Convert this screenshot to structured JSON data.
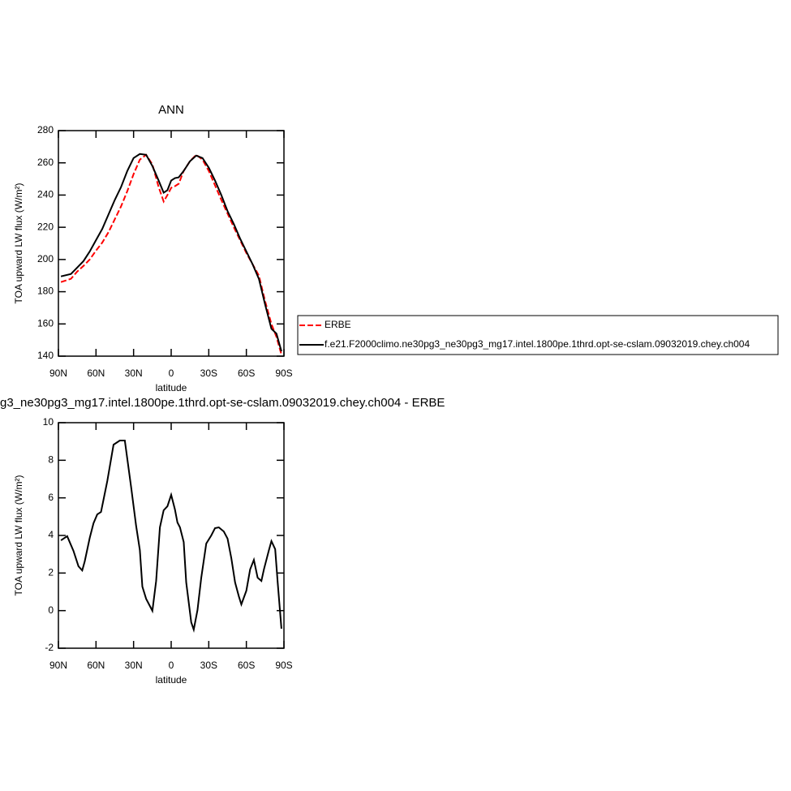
{
  "chart_data": [
    {
      "type": "line",
      "title": "ANN",
      "xlabel": "latitude",
      "ylabel": "TOA upward LW flux (W/m²)",
      "x": [
        88,
        80,
        75,
        70,
        65,
        60,
        55,
        50,
        45,
        40,
        35,
        30,
        25,
        20,
        15,
        10,
        6,
        3,
        0,
        -3,
        -6,
        -10,
        -15,
        -20,
        -25,
        -30,
        -35,
        -40,
        -45,
        -50,
        -55,
        -60,
        -65,
        -70,
        -75,
        -80,
        -84,
        -88
      ],
      "series": [
        {
          "name": "ERBE",
          "color": "#ff0000",
          "linestyle": "dashed",
          "values": [
            186,
            188,
            192.5,
            196,
            200,
            205.5,
            210.5,
            217,
            225,
            233,
            242.5,
            253,
            262,
            265,
            259,
            245,
            236,
            240,
            244.5,
            245.5,
            247,
            255,
            261,
            265,
            262,
            255,
            246,
            237,
            228.5,
            220,
            212,
            204,
            197,
            190,
            174,
            160,
            152,
            141
          ]
        },
        {
          "name": "f.e21.F2000climo.ne30pg3_ne30pg3_mg17.intel.1800pe.1thrd.opt-se-cslam.09032019.chey.ch004",
          "color": "#000000",
          "linestyle": "solid",
          "values": [
            189.5,
            191,
            195,
            199,
            205,
            212,
            219,
            228,
            237,
            245,
            255,
            263,
            265.5,
            265,
            258,
            249,
            241.5,
            243,
            249,
            250.5,
            251,
            255,
            261,
            264.5,
            263,
            257,
            249,
            240,
            230,
            222,
            213,
            205,
            197,
            188,
            172,
            157,
            154,
            143
          ]
        }
      ],
      "xlim": [
        90,
        -90
      ],
      "xticks": [
        {
          "value": 90,
          "label": "90N"
        },
        {
          "value": 60,
          "label": "60N"
        },
        {
          "value": 30,
          "label": "30N"
        },
        0,
        {
          "value": -30,
          "label": "30S"
        },
        {
          "value": -60,
          "label": "60S"
        },
        {
          "value": -90,
          "label": "90S"
        }
      ],
      "ylim": [
        140,
        280
      ],
      "yticks": [
        140,
        160,
        180,
        200,
        220,
        240,
        260,
        280
      ],
      "legend": "right"
    },
    {
      "type": "line",
      "title": "g3_ne30pg3_mg17.intel.1800pe.1thrd.opt-se-cslam.09032019.chey.ch004 - ERBE",
      "xlabel": "latitude",
      "ylabel": "TOA upward LW flux (W/m²)",
      "x": [
        88,
        83,
        78,
        74,
        71,
        69,
        65,
        62,
        59,
        56,
        51,
        46,
        41,
        37,
        32,
        28,
        25,
        23,
        20,
        15,
        12,
        9,
        6,
        3,
        0,
        -3,
        -5,
        -7,
        -10,
        -12,
        -16,
        -18,
        -21,
        -24,
        -28,
        -32,
        -35,
        -38,
        -42,
        -45,
        -48,
        -51,
        -54,
        -56,
        -60,
        -63,
        -66,
        -69,
        -72,
        -74,
        -78,
        -80,
        -83,
        -85,
        -88
      ],
      "series": [
        {
          "color": "#000000",
          "linestyle": "solid",
          "values": [
            3.74,
            3.96,
            3.18,
            2.36,
            2.14,
            2.62,
            3.87,
            4.65,
            5.12,
            5.25,
            6.89,
            8.83,
            9.05,
            9.05,
            6.59,
            4.52,
            3.22,
            1.28,
            0.63,
            -0.01,
            1.58,
            4.43,
            5.34,
            5.55,
            6.16,
            5.38,
            4.69,
            4.43,
            3.65,
            1.5,
            -0.62,
            -1.01,
            0.03,
            1.75,
            3.57,
            4.0,
            4.39,
            4.43,
            4.21,
            3.83,
            2.79,
            1.5,
            0.76,
            0.33,
            1.06,
            2.19,
            2.7,
            1.75,
            1.58,
            2.19,
            3.22,
            3.7,
            3.27,
            1.5,
            -0.96
          ]
        }
      ],
      "xlim": [
        90,
        -90
      ],
      "xticks": [
        {
          "value": 90,
          "label": "90N"
        },
        {
          "value": 60,
          "label": "60N"
        },
        {
          "value": 30,
          "label": "30N"
        },
        0,
        {
          "value": -30,
          "label": "30S"
        },
        {
          "value": -60,
          "label": "60S"
        },
        {
          "value": -90,
          "label": "90S"
        }
      ],
      "ylim": [
        -2,
        10
      ],
      "yticks": [
        -2,
        0,
        2,
        4,
        6,
        8,
        10
      ]
    }
  ]
}
